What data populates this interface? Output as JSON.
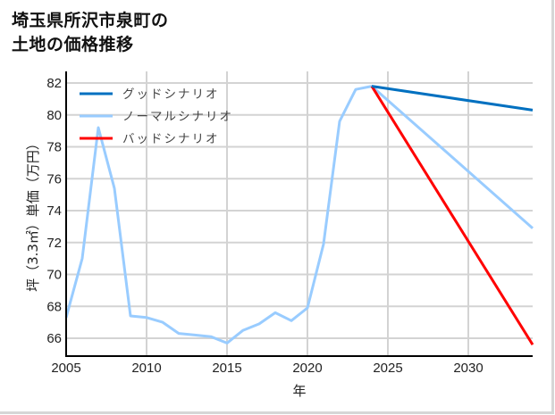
{
  "title": {
    "line1": "埼玉県所沢市泉町の",
    "line2": "土地の価格推移"
  },
  "chart_data": {
    "type": "line",
    "title": "埼玉県所沢市泉町の土地の価格推移",
    "xlabel": "年",
    "ylabel": "坪（3.3㎡）単価（万円）",
    "xlim": [
      2005,
      2034
    ],
    "ylim": [
      64.8,
      82.6
    ],
    "xticks": [
      2005,
      2010,
      2015,
      2020,
      2025,
      2030
    ],
    "yticks": [
      66,
      68,
      70,
      72,
      74,
      76,
      78,
      80,
      82
    ],
    "grid": true,
    "legend_position": "upper left",
    "series": [
      {
        "name": "グッドシナリオ",
        "color": "#0070c0",
        "x": [
          2024,
          2034
        ],
        "values": [
          81.8,
          80.3
        ]
      },
      {
        "name": "ノーマルシナリオ",
        "color": "#99ccff",
        "x": [
          2005,
          2006,
          2007,
          2008,
          2009,
          2010,
          2011,
          2012,
          2013,
          2014,
          2015,
          2016,
          2017,
          2018,
          2019,
          2020,
          2021,
          2022,
          2023,
          2024,
          2034
        ],
        "values": [
          67.3,
          71.0,
          79.2,
          75.4,
          67.4,
          67.3,
          67.0,
          66.3,
          66.2,
          66.1,
          65.7,
          66.5,
          66.9,
          67.6,
          67.1,
          67.9,
          71.9,
          79.6,
          81.6,
          81.8,
          72.9
        ]
      },
      {
        "name": "バッドシナリオ",
        "color": "#ff0000",
        "x": [
          2024,
          2034
        ],
        "values": [
          81.8,
          65.6
        ]
      }
    ]
  },
  "legend": {
    "items": [
      {
        "label": "グッドシナリオ",
        "color": "#0070c0"
      },
      {
        "label": "ノーマルシナリオ",
        "color": "#99ccff"
      },
      {
        "label": "バッドシナリオ",
        "color": "#ff0000"
      }
    ]
  },
  "axes": {
    "xlabel": "年",
    "ylabel": "坪（3.3㎡）単価（万円）"
  },
  "colors": {
    "grid": "#d3d3d3",
    "axis": "#000000",
    "border": "#d6d6d6"
  }
}
